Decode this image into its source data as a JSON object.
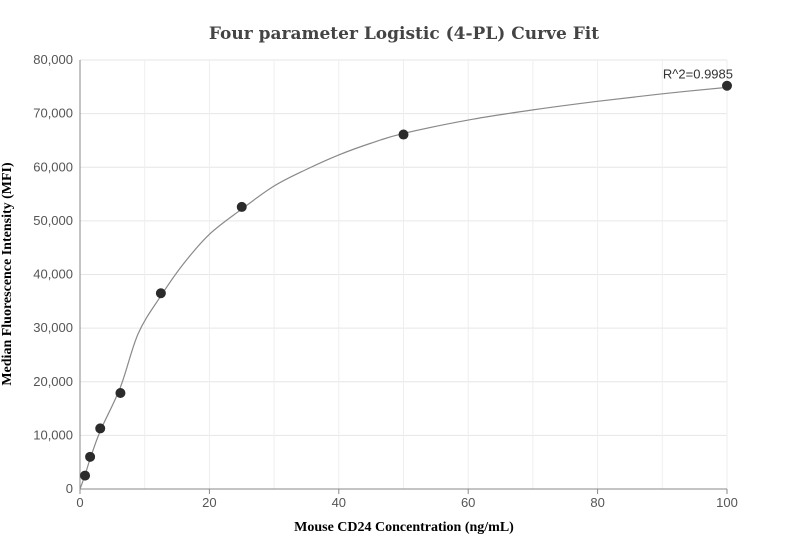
{
  "chart_data": {
    "type": "scatter",
    "title": "Four parameter Logistic (4-PL) Curve Fit",
    "xlabel": "Mouse CD24 Concentration (ng/mL)",
    "ylabel": "Median Fluorescence Intensity (MFI)",
    "xlim": [
      0,
      100
    ],
    "ylim": [
      0,
      80000
    ],
    "x_ticks": [
      0,
      20,
      40,
      60,
      80,
      100
    ],
    "y_ticks": [
      0,
      10000,
      20000,
      30000,
      40000,
      50000,
      60000,
      70000,
      80000
    ],
    "x_tick_labels": [
      "0",
      "20",
      "40",
      "60",
      "80",
      "100"
    ],
    "y_tick_labels": [
      "0",
      "10,000",
      "20,000",
      "30,000",
      "40,000",
      "50,000",
      "60,000",
      "70,000",
      "80,000"
    ],
    "grid": true,
    "series": [
      {
        "points": [
          {
            "x": 0.78,
            "y": 2500
          },
          {
            "x": 1.56,
            "y": 6000
          },
          {
            "x": 3.125,
            "y": 11300
          },
          {
            "x": 6.25,
            "y": 17900
          },
          {
            "x": 12.5,
            "y": 36500
          },
          {
            "x": 25,
            "y": 52600
          },
          {
            "x": 50,
            "y": 66100
          },
          {
            "x": 100,
            "y": 75200
          }
        ]
      }
    ],
    "fit_curve": {
      "model": "4-PL",
      "x": [
        0,
        0.78,
        1.56,
        3.125,
        6.25,
        9,
        12.5,
        16,
        20,
        25,
        30,
        35,
        40,
        45,
        50,
        60,
        70,
        80,
        90,
        100
      ],
      "y": [
        0,
        2600,
        5600,
        10800,
        19000,
        29000,
        36000,
        42000,
        47500,
        52200,
        56500,
        59600,
        62300,
        64500,
        66300,
        68800,
        70700,
        72300,
        73700,
        74900
      ]
    },
    "annotations": [
      {
        "text": "R^2=0.9985",
        "x": 100,
        "y": 75200
      }
    ]
  }
}
